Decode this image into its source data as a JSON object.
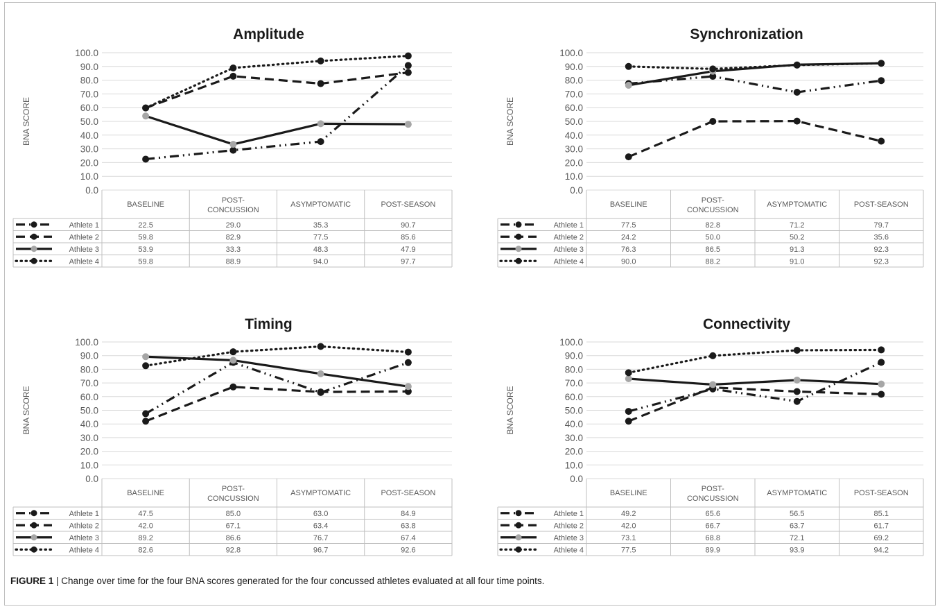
{
  "caption": {
    "label": "FIGURE 1",
    "text": "| Change over time for the four BNA scores generated for the four concussed athletes evaluated at all four time points."
  },
  "colors": {
    "black": "#1a1a1a",
    "gray": "#a6a6a6",
    "grid": "#d9d9d9",
    "table": "#bfbfbf",
    "axis_text": "#595959"
  },
  "chart_data": [
    {
      "type": "line",
      "title": "Amplitude",
      "ylabel": "BNA SCORE",
      "ylim": [
        0,
        100
      ],
      "yticks": [
        "0.0",
        "10.0",
        "20.0",
        "30.0",
        "40.0",
        "50.0",
        "60.0",
        "70.0",
        "80.0",
        "90.0",
        "100.0"
      ],
      "categories": [
        "BASELINE",
        "POST-CONCUSSION",
        "ASYMPTOMATIC",
        "POST-SEASON"
      ],
      "series": [
        {
          "name": "Athlete 1",
          "values": [
            22.5,
            29.0,
            35.3,
            90.7
          ],
          "labels": [
            "22.5",
            "29.0",
            "35.3",
            "90.7"
          ],
          "style": "dashdot",
          "marker": "black"
        },
        {
          "name": "Athlete 2",
          "values": [
            59.8,
            82.9,
            77.5,
            85.6
          ],
          "labels": [
            "59.8",
            "82.9",
            "77.5",
            "85.6"
          ],
          "style": "dashed",
          "marker": "black"
        },
        {
          "name": "Athlete 3",
          "values": [
            53.9,
            33.3,
            48.3,
            47.9
          ],
          "labels": [
            "53.9",
            "33.3",
            "48.3",
            "47.9"
          ],
          "style": "solid",
          "marker": "gray"
        },
        {
          "name": "Athlete 4",
          "values": [
            59.8,
            88.9,
            94.0,
            97.7
          ],
          "labels": [
            "59.8",
            "88.9",
            "94.0",
            "97.7"
          ],
          "style": "dotted",
          "marker": "black"
        }
      ]
    },
    {
      "type": "line",
      "title": "Synchronization",
      "ylabel": "BNA SCORE",
      "ylim": [
        0,
        100
      ],
      "yticks": [
        "0.0",
        "10.0",
        "20.0",
        "30.0",
        "40.0",
        "50.0",
        "60.0",
        "70.0",
        "80.0",
        "90.0",
        "100.0"
      ],
      "categories": [
        "BASELINE",
        "POST-CONCUSSION",
        "ASYMPTOMATIC",
        "POST-SEASON"
      ],
      "series": [
        {
          "name": "Athlete 1",
          "values": [
            77.5,
            82.8,
            71.2,
            79.7
          ],
          "labels": [
            "77.5",
            "82.8",
            "71.2",
            "79.7"
          ],
          "style": "dashdot",
          "marker": "black"
        },
        {
          "name": "Athlete 2",
          "values": [
            24.2,
            50.0,
            50.2,
            35.6
          ],
          "labels": [
            "24.2",
            "50.0",
            "50.2",
            "35.6"
          ],
          "style": "dashed",
          "marker": "black"
        },
        {
          "name": "Athlete 3",
          "values": [
            76.3,
            86.5,
            91.3,
            92.3
          ],
          "labels": [
            "76.3",
            "86.5",
            "91.3",
            "92.3"
          ],
          "style": "solid",
          "marker": "gray"
        },
        {
          "name": "Athlete 4",
          "values": [
            90.0,
            88.2,
            91.0,
            92.3
          ],
          "labels": [
            "90.0",
            "88.2",
            "91.0",
            "92.3"
          ],
          "style": "dotted",
          "marker": "black"
        }
      ]
    },
    {
      "type": "line",
      "title": "Timing",
      "ylabel": "BNA SCORE",
      "ylim": [
        0,
        100
      ],
      "yticks": [
        "0.0",
        "10.0",
        "20.0",
        "30.0",
        "40.0",
        "50.0",
        "60.0",
        "70.0",
        "80.0",
        "90.0",
        "100.0"
      ],
      "categories": [
        "BASELINE",
        "POST-CONCUSSION",
        "ASYMPTOMATIC",
        "POST-SEASON"
      ],
      "series": [
        {
          "name": "Athlete 1",
          "values": [
            47.5,
            85.0,
            63.0,
            84.9
          ],
          "labels": [
            "47.5",
            "85.0",
            "63.0",
            "84.9"
          ],
          "style": "dashdot",
          "marker": "black"
        },
        {
          "name": "Athlete 2",
          "values": [
            42.0,
            67.1,
            63.4,
            63.8
          ],
          "labels": [
            "42.0",
            "67.1",
            "63.4",
            "63.8"
          ],
          "style": "dashed",
          "marker": "black"
        },
        {
          "name": "Athlete 3",
          "values": [
            89.2,
            86.6,
            76.7,
            67.4
          ],
          "labels": [
            "89.2",
            "86.6",
            "76.7",
            "67.4"
          ],
          "style": "solid",
          "marker": "gray"
        },
        {
          "name": "Athlete 4",
          "values": [
            82.6,
            92.8,
            96.7,
            92.6
          ],
          "labels": [
            "82.6",
            "92.8",
            "96.7",
            "92.6"
          ],
          "style": "dotted",
          "marker": "black"
        }
      ]
    },
    {
      "type": "line",
      "title": "Connectivity",
      "ylabel": "BNA SCORE",
      "ylim": [
        0,
        100
      ],
      "yticks": [
        "0.0",
        "10.0",
        "20.0",
        "30.0",
        "40.0",
        "50.0",
        "60.0",
        "70.0",
        "80.0",
        "90.0",
        "100.0"
      ],
      "categories": [
        "BASELINE",
        "POST-CONCUSSION",
        "ASYMPTOMATIC",
        "POST-SEASON"
      ],
      "series": [
        {
          "name": "Athlete 1",
          "values": [
            49.2,
            65.6,
            56.5,
            85.1
          ],
          "labels": [
            "49.2",
            "65.6",
            "56.5",
            "85.1"
          ],
          "style": "dashdot",
          "marker": "black"
        },
        {
          "name": "Athlete 2",
          "values": [
            42.0,
            66.7,
            63.7,
            61.7
          ],
          "labels": [
            "42.0",
            "66.7",
            "63.7",
            "61.7"
          ],
          "style": "dashed",
          "marker": "black"
        },
        {
          "name": "Athlete 3",
          "values": [
            73.1,
            68.8,
            72.1,
            69.2
          ],
          "labels": [
            "73.1",
            "68.8",
            "72.1",
            "69.2"
          ],
          "style": "solid",
          "marker": "gray"
        },
        {
          "name": "Athlete 4",
          "values": [
            77.5,
            89.9,
            93.9,
            94.2
          ],
          "labels": [
            "77.5",
            "89.9",
            "93.9",
            "94.2"
          ],
          "style": "dotted",
          "marker": "black"
        }
      ]
    }
  ]
}
